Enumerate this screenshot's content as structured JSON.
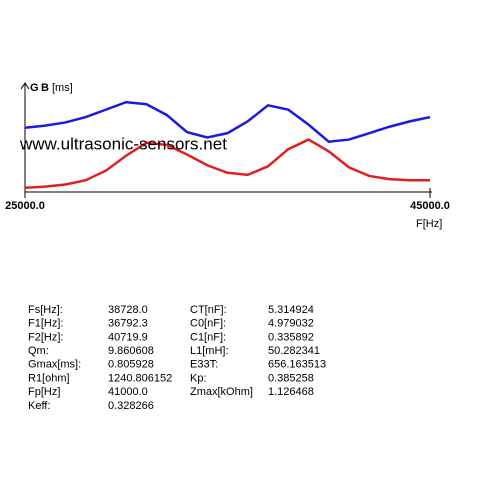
{
  "chart_data": {
    "type": "line",
    "y_label": "[ms]",
    "x_label": "F[Hz]",
    "watermark": "www.ultrasonic-sensors.net",
    "x": [
      25000,
      26000,
      27000,
      28000,
      29000,
      30000,
      31000,
      32000,
      33000,
      34000,
      35000,
      36000,
      37000,
      38000,
      39000,
      40000,
      41000,
      42000,
      43000,
      44000,
      45000
    ],
    "xlim": [
      25000,
      45000
    ],
    "xticks": [
      {
        "value": 25000,
        "label": "25000.0"
      },
      {
        "value": 45000,
        "label": "45000.0"
      }
    ],
    "ylim": [
      0,
      100
    ],
    "series": [
      {
        "name": "G",
        "color": "#e02020",
        "values": [
          4,
          5,
          7,
          11,
          20,
          34,
          46,
          44,
          35,
          25,
          18,
          16,
          24,
          40,
          49,
          38,
          23,
          15,
          12,
          11,
          11
        ]
      },
      {
        "name": "B",
        "color": "#1a1ae0",
        "values": [
          60,
          62,
          65,
          70,
          77,
          84,
          82,
          72,
          56,
          51,
          55,
          66,
          81,
          77,
          63,
          47,
          49,
          55,
          61,
          66,
          70
        ]
      }
    ]
  },
  "table": {
    "rows": [
      [
        "Fs[Hz]:",
        "38728.0",
        "CT[nF]:",
        "5.314924"
      ],
      [
        "F1[Hz]:",
        "36792.3",
        "C0[nF]:",
        "4.979032"
      ],
      [
        "F2[Hz]:",
        "40719.9",
        "C1[nF]:",
        "0.335892"
      ],
      [
        "Qm:",
        "9.860608",
        "L1[mH]:",
        "50.282341"
      ],
      [
        "Gmax[ms]:",
        "0.805928",
        "E33T:",
        "656.163513"
      ],
      [
        "R1[ohm]",
        "1240.806152",
        "Kp:",
        "0.385258"
      ],
      [
        "Fp[Hz]",
        "41000.0",
        "Zmax[kOhm]",
        "1.126468"
      ],
      [
        "Keff:",
        "0.328266"
      ]
    ]
  }
}
